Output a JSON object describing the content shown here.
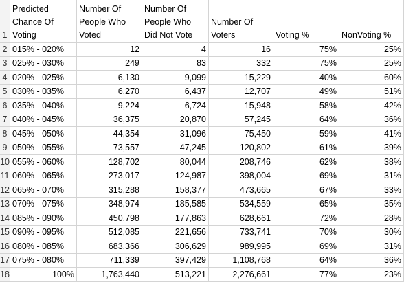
{
  "headers": [
    "Predicted\nChance Of\nVoting",
    "Number Of\nPeople Who\nVoted",
    "Number Of\nPeople Who\nDid Not Vote",
    "Number Of\nVoters",
    "Voting %",
    "NonVoting %"
  ],
  "row_numbers": [
    "1",
    "2",
    "3",
    "4",
    "5",
    "6",
    "7",
    "8",
    "9",
    "10",
    "11",
    "12",
    "13",
    "14",
    "15",
    "16",
    "17",
    "18"
  ],
  "rows": [
    [
      "015% - 020%",
      "12",
      "4",
      "16",
      "75%",
      "25%"
    ],
    [
      "025% - 030%",
      "249",
      "83",
      "332",
      "75%",
      "25%"
    ],
    [
      "020% - 025%",
      "6,130",
      "9,099",
      "15,229",
      "40%",
      "60%"
    ],
    [
      "030% - 035%",
      "6,270",
      "6,437",
      "12,707",
      "49%",
      "51%"
    ],
    [
      "035% - 040%",
      "9,224",
      "6,724",
      "15,948",
      "58%",
      "42%"
    ],
    [
      "040% - 045%",
      "36,375",
      "20,870",
      "57,245",
      "64%",
      "36%"
    ],
    [
      "045% - 050%",
      "44,354",
      "31,096",
      "75,450",
      "59%",
      "41%"
    ],
    [
      "050% - 055%",
      "73,557",
      "47,245",
      "120,802",
      "61%",
      "39%"
    ],
    [
      "055% - 060%",
      "128,702",
      "80,044",
      "208,746",
      "62%",
      "38%"
    ],
    [
      "060% - 065%",
      "273,017",
      "124,987",
      "398,004",
      "69%",
      "31%"
    ],
    [
      "065% - 070%",
      "315,288",
      "158,377",
      "473,665",
      "67%",
      "33%"
    ],
    [
      "070% - 075%",
      "348,974",
      "185,585",
      "534,559",
      "65%",
      "35%"
    ],
    [
      "085% - 090%",
      "450,798",
      "177,863",
      "628,661",
      "72%",
      "28%"
    ],
    [
      "090% - 095%",
      "512,085",
      "221,656",
      "733,741",
      "70%",
      "30%"
    ],
    [
      "080% - 085%",
      "683,366",
      "306,629",
      "989,995",
      "69%",
      "31%"
    ],
    [
      "075% - 080%",
      "711,339",
      "397,429",
      "1,108,768",
      "64%",
      "36%"
    ],
    [
      "100%",
      "1,763,440",
      "513,221",
      "2,276,661",
      "77%",
      "23%"
    ]
  ],
  "colors": {
    "selection_green": "#107c41",
    "gridline": "#d4d4d4",
    "row_header_bg": "#f3f3f3"
  }
}
